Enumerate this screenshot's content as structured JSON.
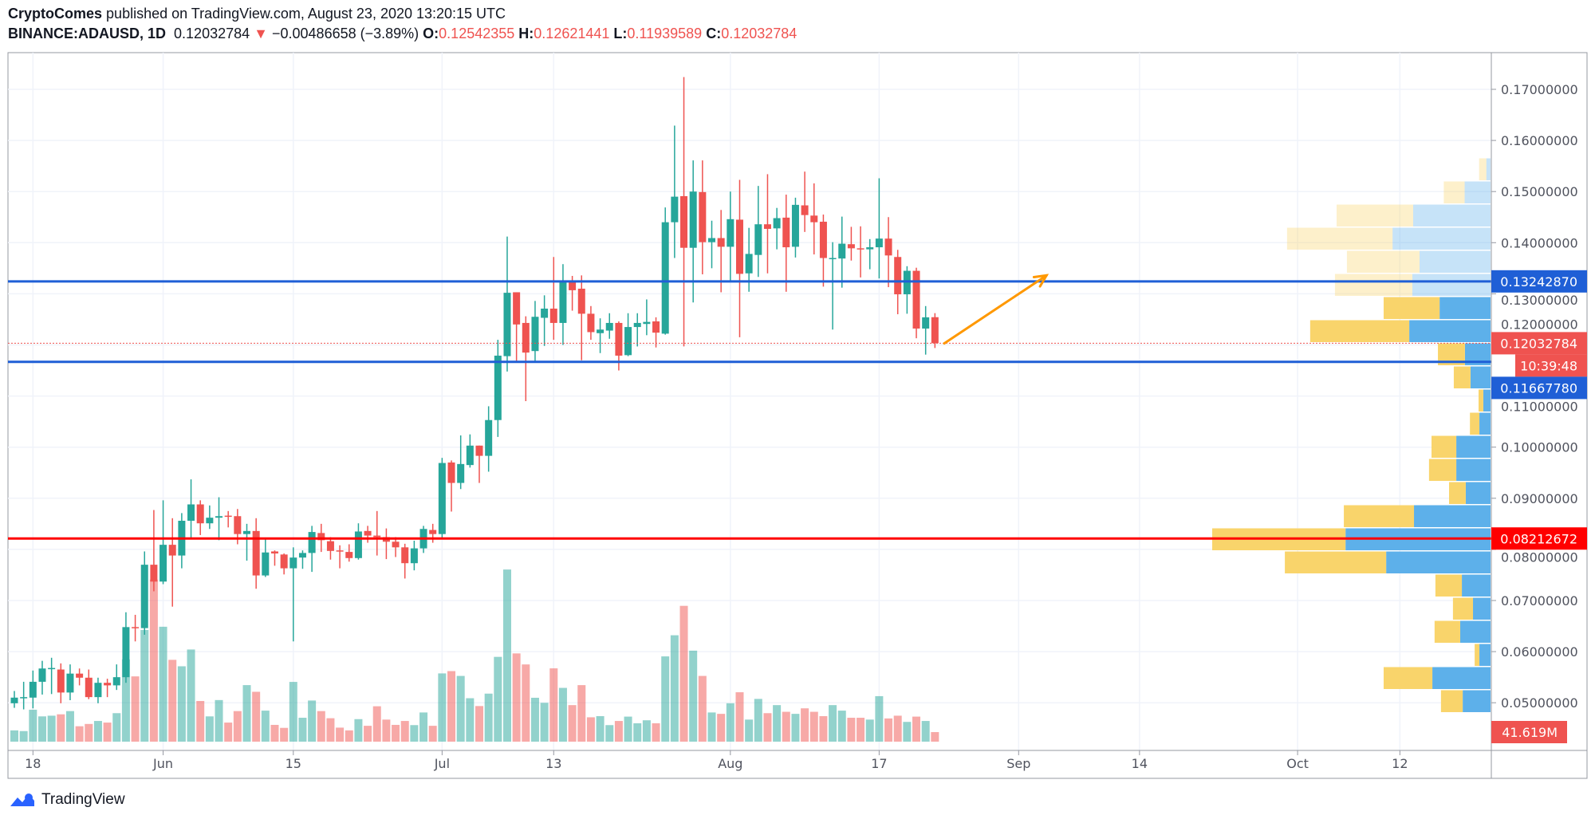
{
  "header": {
    "author": "CryptoComes",
    "published": "published on TradingView.com, August 23, 2020 13:20:15 UTC",
    "symbol": "BINANCE:ADAUSD, 1D",
    "last": "0.12032784",
    "change": "−0.00486658 (−3.89%)",
    "o_label": "O:",
    "o": "0.12542355",
    "h_label": "H:",
    "h": "0.12621441",
    "l_label": "L:",
    "l": "0.11939589",
    "c_label": "C:",
    "c": "0.12032784"
  },
  "footer": {
    "brand": "TradingView"
  },
  "colors": {
    "up": "#26a69a",
    "down": "#ef5350",
    "level_blue": "#1f5fd6",
    "level_red": "#ff0000",
    "arrow": "#ff9800",
    "profile_up": "#5db0ea",
    "profile_down": "#f9d46b"
  },
  "chart_data": {
    "type": "candlestick",
    "title": "",
    "ylim": [
      0.043,
      0.1775
    ],
    "grid": true,
    "price_ticks": [
      "0.05000000",
      "0.06000000",
      "0.07000000",
      "0.08000000",
      "0.09000000",
      "0.10000000",
      "0.11000000",
      "0.12000000",
      "0.13000000",
      "0.14000000",
      "0.15000000",
      "0.16000000",
      "0.17000000"
    ],
    "time_ticks": [
      {
        "label": "18",
        "date": "2020-05-18"
      },
      {
        "label": "Jun",
        "date": "2020-06-01"
      },
      {
        "label": "15",
        "date": "2020-06-15"
      },
      {
        "label": "Jul",
        "date": "2020-07-01"
      },
      {
        "label": "13",
        "date": "2020-07-13"
      },
      {
        "label": "Aug",
        "date": "2020-08-01"
      },
      {
        "label": "17",
        "date": "2020-08-17"
      },
      {
        "label": "Sep",
        "date": "2020-09-01"
      },
      {
        "label": "14",
        "date": "2020-09-14"
      },
      {
        "label": "Oct",
        "date": "2020-10-01"
      },
      {
        "label": "12",
        "date": "2020-10-12"
      }
    ],
    "candle_fields": [
      "date",
      "open",
      "high",
      "low",
      "close",
      "volume_M"
    ],
    "candles": [
      [
        "2020-05-16",
        0.0499,
        0.0523,
        0.049,
        0.051,
        49
      ],
      [
        "2020-05-17",
        0.051,
        0.0541,
        0.0487,
        0.0511,
        46
      ],
      [
        "2020-05-18",
        0.051,
        0.0563,
        0.0489,
        0.0541,
        139
      ],
      [
        "2020-05-19",
        0.0541,
        0.0582,
        0.0516,
        0.0567,
        110
      ],
      [
        "2020-05-20",
        0.0566,
        0.0588,
        0.0517,
        0.0568,
        113
      ],
      [
        "2020-05-21",
        0.0565,
        0.0577,
        0.0499,
        0.052,
        119
      ],
      [
        "2020-05-22",
        0.052,
        0.0575,
        0.0505,
        0.0557,
        133
      ],
      [
        "2020-05-23",
        0.0557,
        0.0567,
        0.0534,
        0.0549,
        67
      ],
      [
        "2020-05-24",
        0.0549,
        0.0565,
        0.0507,
        0.0511,
        77
      ],
      [
        "2020-05-25",
        0.0511,
        0.0549,
        0.0499,
        0.0539,
        90
      ],
      [
        "2020-05-26",
        0.0539,
        0.0547,
        0.0511,
        0.0534,
        83
      ],
      [
        "2020-05-27",
        0.0534,
        0.0575,
        0.0525,
        0.055,
        124
      ],
      [
        "2020-05-28",
        0.055,
        0.0677,
        0.0539,
        0.0648,
        358
      ],
      [
        "2020-05-29",
        0.0648,
        0.0672,
        0.062,
        0.0646,
        284
      ],
      [
        "2020-05-30",
        0.0646,
        0.0796,
        0.0633,
        0.077,
        486
      ],
      [
        "2020-05-31",
        0.077,
        0.0877,
        0.0718,
        0.0737,
        705
      ],
      [
        "2020-06-01",
        0.0737,
        0.0896,
        0.0732,
        0.0809,
        500
      ],
      [
        "2020-06-02",
        0.0809,
        0.0861,
        0.0688,
        0.0788,
        356
      ],
      [
        "2020-06-03",
        0.0788,
        0.0871,
        0.0763,
        0.0856,
        328
      ],
      [
        "2020-06-04",
        0.0856,
        0.0937,
        0.0822,
        0.0888,
        401
      ],
      [
        "2020-06-05",
        0.0888,
        0.0896,
        0.0828,
        0.0851,
        177
      ],
      [
        "2020-06-06",
        0.0851,
        0.0886,
        0.084,
        0.0862,
        110
      ],
      [
        "2020-06-07",
        0.0862,
        0.0902,
        0.0818,
        0.0865,
        181
      ],
      [
        "2020-06-08",
        0.0866,
        0.0875,
        0.0843,
        0.0864,
        83
      ],
      [
        "2020-06-09",
        0.0865,
        0.0879,
        0.081,
        0.083,
        133
      ],
      [
        "2020-06-10",
        0.083,
        0.085,
        0.0778,
        0.0836,
        246
      ],
      [
        "2020-06-11",
        0.0836,
        0.0861,
        0.0723,
        0.0749,
        217
      ],
      [
        "2020-06-12",
        0.0749,
        0.0821,
        0.0746,
        0.0794,
        135
      ],
      [
        "2020-06-13",
        0.0796,
        0.0798,
        0.0768,
        0.0792,
        73
      ],
      [
        "2020-06-14",
        0.079,
        0.0792,
        0.0751,
        0.0763,
        60
      ],
      [
        "2020-06-15",
        0.0763,
        0.0804,
        0.062,
        0.0784,
        260
      ],
      [
        "2020-06-16",
        0.0784,
        0.0798,
        0.0762,
        0.0793,
        104
      ],
      [
        "2020-06-17",
        0.0793,
        0.0846,
        0.0756,
        0.0834,
        179
      ],
      [
        "2020-06-18",
        0.0832,
        0.085,
        0.0795,
        0.0818,
        133
      ],
      [
        "2020-06-19",
        0.0816,
        0.0824,
        0.078,
        0.0797,
        102
      ],
      [
        "2020-06-20",
        0.0798,
        0.0808,
        0.0763,
        0.0796,
        61
      ],
      [
        "2020-06-21",
        0.0795,
        0.081,
        0.0776,
        0.0783,
        49
      ],
      [
        "2020-06-22",
        0.0783,
        0.0851,
        0.078,
        0.0835,
        98
      ],
      [
        "2020-06-23",
        0.0836,
        0.0846,
        0.0813,
        0.0827,
        69
      ],
      [
        "2020-06-24",
        0.0827,
        0.0875,
        0.0788,
        0.0824,
        154
      ],
      [
        "2020-06-25",
        0.0824,
        0.0841,
        0.0781,
        0.0815,
        96
      ],
      [
        "2020-06-26",
        0.0815,
        0.0824,
        0.0785,
        0.0804,
        73
      ],
      [
        "2020-06-27",
        0.0804,
        0.0811,
        0.0743,
        0.0773,
        90
      ],
      [
        "2020-06-28",
        0.0773,
        0.0817,
        0.0759,
        0.0802,
        72
      ],
      [
        "2020-06-29",
        0.0802,
        0.0846,
        0.0793,
        0.084,
        127
      ],
      [
        "2020-06-30",
        0.0838,
        0.085,
        0.0813,
        0.083,
        69
      ],
      [
        "2020-07-01",
        0.083,
        0.0979,
        0.0822,
        0.0969,
        297
      ],
      [
        "2020-07-02",
        0.097,
        0.0974,
        0.0874,
        0.093,
        307
      ],
      [
        "2020-07-03",
        0.093,
        0.1023,
        0.0918,
        0.0967,
        286
      ],
      [
        "2020-07-04",
        0.0965,
        0.1025,
        0.096,
        0.1003,
        189
      ],
      [
        "2020-07-05",
        0.1003,
        0.1003,
        0.093,
        0.0983,
        155
      ],
      [
        "2020-07-06",
        0.0983,
        0.108,
        0.0952,
        0.1053,
        209
      ],
      [
        "2020-07-07",
        0.1053,
        0.121,
        0.102,
        0.1179,
        369
      ],
      [
        "2020-07-08",
        0.1178,
        0.1412,
        0.1148,
        0.1302,
        749
      ],
      [
        "2020-07-09",
        0.1303,
        0.1303,
        0.1165,
        0.124,
        384
      ],
      [
        "2020-07-10",
        0.1243,
        0.1256,
        0.109,
        0.1185,
        336
      ],
      [
        "2020-07-11",
        0.1188,
        0.1286,
        0.1165,
        0.1255,
        191
      ],
      [
        "2020-07-12",
        0.1253,
        0.1297,
        0.1198,
        0.1271,
        169
      ],
      [
        "2020-07-13",
        0.1271,
        0.1372,
        0.121,
        0.1243,
        319
      ],
      [
        "2020-07-14",
        0.1243,
        0.1358,
        0.12,
        0.1325,
        234
      ],
      [
        "2020-07-15",
        0.1325,
        0.1335,
        0.1267,
        0.1307,
        159
      ],
      [
        "2020-07-16",
        0.131,
        0.1336,
        0.117,
        0.1261,
        246
      ],
      [
        "2020-07-17",
        0.1261,
        0.1276,
        0.121,
        0.1225,
        106
      ],
      [
        "2020-07-18",
        0.1223,
        0.1252,
        0.1184,
        0.123,
        111
      ],
      [
        "2020-07-19",
        0.1228,
        0.1262,
        0.1212,
        0.1243,
        72
      ],
      [
        "2020-07-20",
        0.1243,
        0.1246,
        0.115,
        0.1179,
        90
      ],
      [
        "2020-07-21",
        0.118,
        0.1262,
        0.1178,
        0.1235,
        109
      ],
      [
        "2020-07-22",
        0.1235,
        0.1262,
        0.1197,
        0.1243,
        80
      ],
      [
        "2020-07-23",
        0.1241,
        0.1289,
        0.1219,
        0.1245,
        93
      ],
      [
        "2020-07-24",
        0.1246,
        0.1254,
        0.1195,
        0.1224,
        80
      ],
      [
        "2020-07-25",
        0.1222,
        0.1469,
        0.122,
        0.144,
        371
      ],
      [
        "2020-07-26",
        0.144,
        0.1629,
        0.137,
        0.149,
        463
      ],
      [
        "2020-07-27",
        0.1491,
        0.1724,
        0.1197,
        0.139,
        591
      ],
      [
        "2020-07-28",
        0.139,
        0.1561,
        0.1283,
        0.15,
        396
      ],
      [
        "2020-07-29",
        0.1499,
        0.1561,
        0.1338,
        0.1401,
        286
      ],
      [
        "2020-07-30",
        0.1401,
        0.1443,
        0.135,
        0.1409,
        127
      ],
      [
        "2020-07-31",
        0.1409,
        0.1464,
        0.1303,
        0.1392,
        121
      ],
      [
        "2020-08-01",
        0.1392,
        0.15,
        0.1323,
        0.1446,
        167
      ],
      [
        "2020-08-02",
        0.1445,
        0.1523,
        0.1215,
        0.1339,
        215
      ],
      [
        "2020-08-03",
        0.134,
        0.1429,
        0.1304,
        0.1378,
        96
      ],
      [
        "2020-08-04",
        0.1376,
        0.1511,
        0.1333,
        0.1436,
        186
      ],
      [
        "2020-08-05",
        0.1436,
        0.1534,
        0.134,
        0.1427,
        124
      ],
      [
        "2020-08-06",
        0.1428,
        0.1468,
        0.1387,
        0.1448,
        159
      ],
      [
        "2020-08-07",
        0.1449,
        0.1494,
        0.1304,
        0.1391,
        130
      ],
      [
        "2020-08-08",
        0.1392,
        0.1488,
        0.1371,
        0.1474,
        121
      ],
      [
        "2020-08-09",
        0.1473,
        0.1539,
        0.1421,
        0.1454,
        145
      ],
      [
        "2020-08-10",
        0.1453,
        0.1516,
        0.1377,
        0.144,
        130
      ],
      [
        "2020-08-11",
        0.1441,
        0.1455,
        0.1314,
        0.137,
        111
      ],
      [
        "2020-08-12",
        0.1369,
        0.1401,
        0.123,
        0.137,
        159
      ],
      [
        "2020-08-13",
        0.1369,
        0.1451,
        0.1312,
        0.1398,
        135
      ],
      [
        "2020-08-14",
        0.1397,
        0.1431,
        0.1365,
        0.1389,
        104
      ],
      [
        "2020-08-15",
        0.1389,
        0.1432,
        0.1332,
        0.1387,
        104
      ],
      [
        "2020-08-16",
        0.1387,
        0.1407,
        0.1348,
        0.1391,
        96
      ],
      [
        "2020-08-17",
        0.1391,
        0.1526,
        0.133,
        0.1408,
        198
      ],
      [
        "2020-08-18",
        0.1408,
        0.145,
        0.1313,
        0.1375,
        101
      ],
      [
        "2020-08-19",
        0.1372,
        0.1386,
        0.126,
        0.1299,
        113
      ],
      [
        "2020-08-20",
        0.1299,
        0.1354,
        0.1261,
        0.1345,
        86
      ],
      [
        "2020-08-21",
        0.1345,
        0.1351,
        0.1213,
        0.1232,
        109
      ],
      [
        "2020-08-22",
        0.1232,
        0.1276,
        0.1181,
        0.1254,
        90
      ],
      [
        "2020-08-23",
        0.12542355,
        0.12621441,
        0.11939589,
        0.12032784,
        41.619
      ]
    ],
    "levels": [
      {
        "price": 0.1324287,
        "label": "0.13242870",
        "color": "#1f5fd6"
      },
      {
        "price": 0.1166778,
        "label": "0.11667780",
        "color": "#1f5fd6"
      },
      {
        "price": 0.08212672,
        "label": "0.08212672",
        "color": "#ff0000"
      }
    ],
    "last_price": {
      "price": 0.12032784,
      "label": "0.12032784",
      "countdown": "10:39:48"
    },
    "last_volume_label": "41.619M",
    "arrow": {
      "from": {
        "date": "2020-08-24",
        "price": 0.1203
      },
      "to": {
        "date": "2020-09-04",
        "price": 0.1336
      }
    },
    "volume_profile": {
      "top_price": 0.15658,
      "row_step": 0.004524,
      "units": "relative (max row = 100)",
      "rows": [
        {
          "up": 1.5,
          "down": 2.6,
          "faded": true
        },
        {
          "up": 9.3,
          "down": 7.5,
          "faded": true
        },
        {
          "up": 27.8,
          "down": 27.5,
          "faded": true
        },
        {
          "up": 35.2,
          "down": 37.9,
          "faded": true
        },
        {
          "up": 25.5,
          "down": 26.1,
          "faded": true
        },
        {
          "up": 28.1,
          "down": 27.8,
          "faded": true
        },
        {
          "up": 18.3,
          "down": 20.1,
          "faded": false
        },
        {
          "up": 29.2,
          "down": 35.6,
          "faded": false
        },
        {
          "up": 9.2,
          "down": 9.7,
          "faded": false
        },
        {
          "up": 7.2,
          "down": 6.0,
          "faded": false
        },
        {
          "up": 2.6,
          "down": 1.7,
          "faded": false
        },
        {
          "up": 4.0,
          "down": 3.4,
          "faded": false
        },
        {
          "up": 12.3,
          "down": 8.9,
          "faded": false
        },
        {
          "up": 12.3,
          "down": 9.8,
          "faded": false
        },
        {
          "up": 8.9,
          "down": 6.0,
          "faded": false
        },
        {
          "up": 27.5,
          "down": 25.2,
          "faded": false
        },
        {
          "up": 52.1,
          "down": 47.9,
          "faded": false
        },
        {
          "up": 37.5,
          "down": 36.4,
          "faded": false
        },
        {
          "up": 10.3,
          "down": 9.5,
          "faded": false
        },
        {
          "up": 6.3,
          "down": 7.2,
          "faded": false
        },
        {
          "up": 10.9,
          "down": 9.2,
          "faded": false
        },
        {
          "up": 4.0,
          "down": 1.7,
          "faded": false
        },
        {
          "up": 20.9,
          "down": 17.5,
          "faded": false
        },
        {
          "up": 10.0,
          "down": 7.8,
          "faded": false
        }
      ]
    }
  }
}
